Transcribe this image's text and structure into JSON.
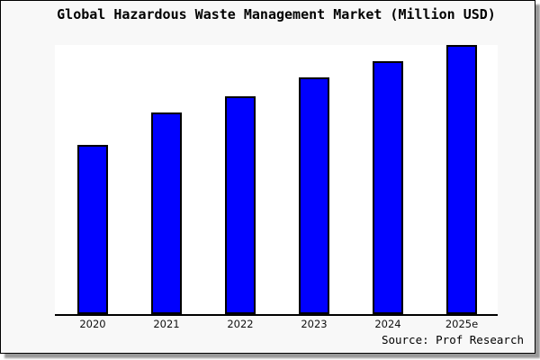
{
  "window": {
    "background": "#f8f8f8",
    "border_color": "#000000",
    "shadow_color": "#999999"
  },
  "chart_data": {
    "type": "bar",
    "title": "Global Hazardous Waste Management Market (Million USD)",
    "categories": [
      "2020",
      "2021",
      "2022",
      "2023",
      "2024",
      "2025e"
    ],
    "values": [
      63,
      75,
      81,
      88,
      94,
      100
    ],
    "value_scale_note": "No y-axis, gridlines or data labels are shown; values are relative bar heights as percent of the tallest bar (2025e = 100)",
    "xlabel": "",
    "ylabel": "",
    "ylim": [
      0,
      100
    ],
    "grid": false,
    "legend": false,
    "bar_color": "#0000fe",
    "bar_border_color": "#000000",
    "plot_background": "#ffffff",
    "axis_color": "#000000"
  },
  "footer": {
    "source_label": "Source: Prof Research"
  }
}
